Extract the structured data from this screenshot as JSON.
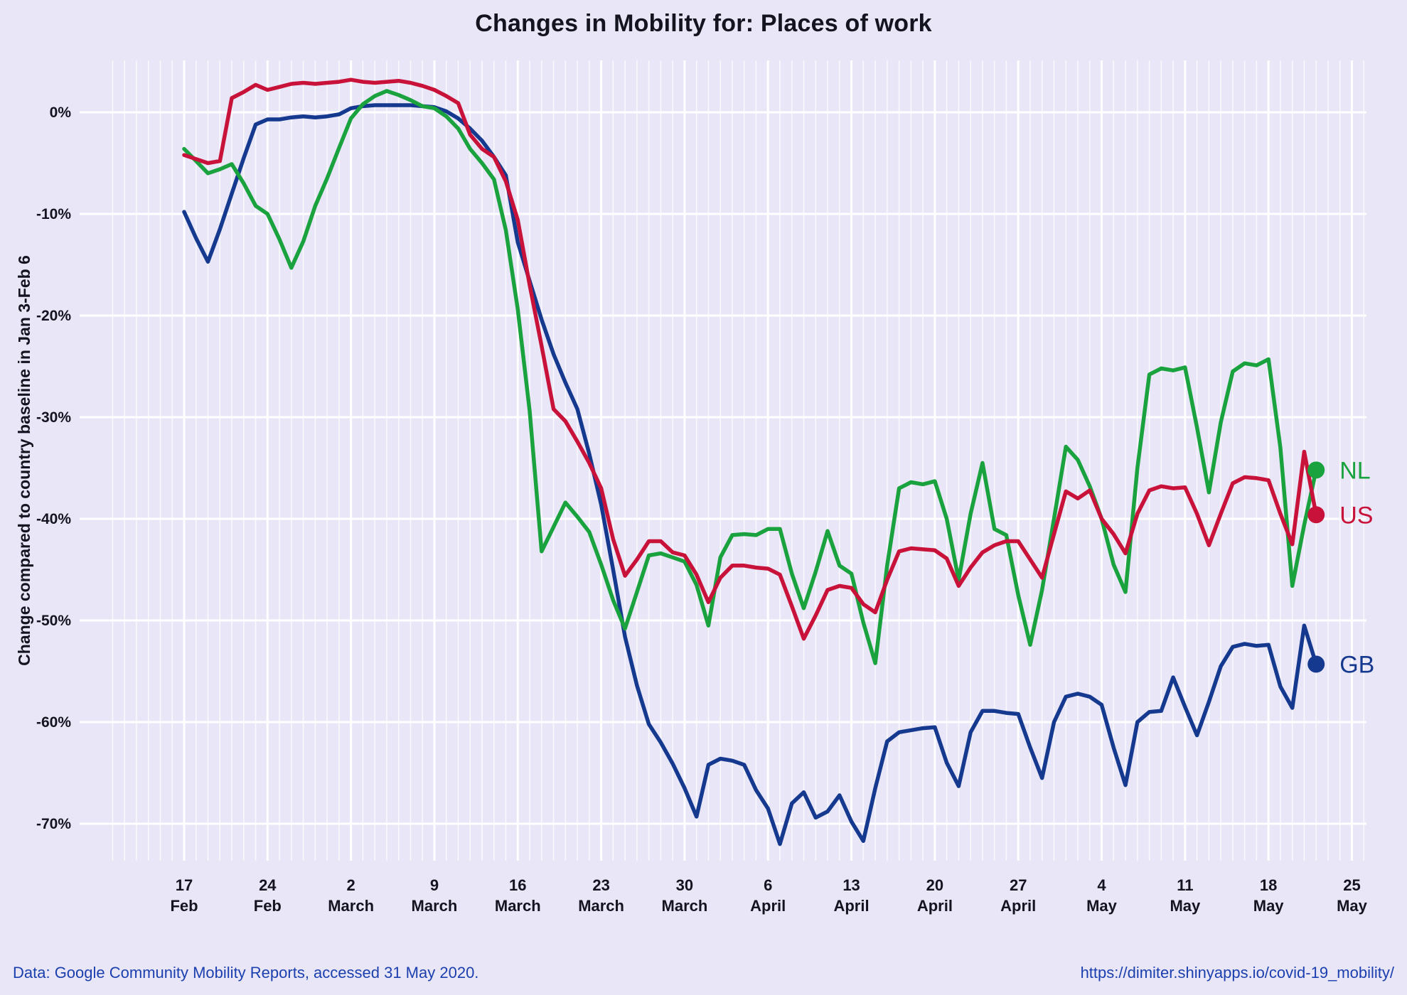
{
  "title": "Changes in Mobility for: Places of work",
  "footer": {
    "source": "Data: Google Community Mobility Reports, accessed 31 May 2020.",
    "url": "https://dimiter.shinyapps.io/covid-19_mobility/"
  },
  "colors": {
    "background": "#E9E7F7",
    "gridline": "#FFFFFF",
    "text": "#141420",
    "footer_text": "#1B3FAE",
    "nl": "#19A23E",
    "us": "#C8123A",
    "gb": "#15398F"
  },
  "chart_data": {
    "type": "line",
    "title": "Changes in Mobility for: Places of work",
    "ylabel": "Change compared to country baseline in Jan 3-Feb 6",
    "xlabel": "",
    "ylim": [
      -73.5,
      5.1
    ],
    "grid": "white major horizontal every 10%, white vertical weekly major + daily minor",
    "legend_position": "right end of lines, colored dot + label",
    "y_tick_labels": [
      "0%",
      "-10%",
      "-20%",
      "-30%",
      "-40%",
      "-50%",
      "-60%",
      "-70%"
    ],
    "y_tick_values": [
      0,
      -10,
      -20,
      -30,
      -40,
      -50,
      -60,
      -70
    ],
    "x_tick_labels": [
      {
        "day": "17",
        "month": "Feb"
      },
      {
        "day": "24",
        "month": "Feb"
      },
      {
        "day": "2",
        "month": "March"
      },
      {
        "day": "9",
        "month": "March"
      },
      {
        "day": "16",
        "month": "March"
      },
      {
        "day": "23",
        "month": "March"
      },
      {
        "day": "30",
        "month": "March"
      },
      {
        "day": "6",
        "month": "April"
      },
      {
        "day": "13",
        "month": "April"
      },
      {
        "day": "20",
        "month": "April"
      },
      {
        "day": "27",
        "month": "April"
      },
      {
        "day": "4",
        "month": "May"
      },
      {
        "day": "11",
        "month": "May"
      },
      {
        "day": "18",
        "month": "May"
      },
      {
        "day": "25",
        "month": "May"
      }
    ],
    "x_tick_day_index": [
      0,
      7,
      14,
      21,
      28,
      35,
      42,
      49,
      56,
      63,
      70,
      77,
      84,
      91,
      98
    ],
    "x_start": "17 Feb (day index 0, daily data)",
    "x_end_day_index": 95,
    "series": [
      {
        "name": "GB",
        "color": "#15398F",
        "values": [
          -9.8,
          -12.4,
          -14.7,
          -11.5,
          -8.0,
          -4.5,
          -1.2,
          -0.7,
          -0.7,
          -0.5,
          -0.4,
          -0.5,
          -0.4,
          -0.2,
          0.4,
          0.6,
          0.7,
          0.7,
          0.7,
          0.7,
          0.6,
          0.5,
          0.1,
          -0.6,
          -1.6,
          -2.8,
          -4.4,
          -6.2,
          -12.8,
          -16.6,
          -20.4,
          -23.8,
          -26.6,
          -29.2,
          -33.6,
          -38.6,
          -45.0,
          -51.6,
          -56.4,
          -60.2,
          -62.0,
          -64.1,
          -66.5,
          -69.3,
          -64.2,
          -63.6,
          -63.8,
          -64.2,
          -66.7,
          -68.5,
          -72.0,
          -68.0,
          -66.9,
          -69.4,
          -68.8,
          -67.2,
          -69.8,
          -71.7,
          -66.5,
          -61.9,
          -61.0,
          -60.8,
          -60.6,
          -60.5,
          -64.0,
          -66.3,
          -61.0,
          -58.9,
          -58.9,
          -59.1,
          -59.2,
          -62.5,
          -65.5,
          -60.0,
          -57.5,
          -57.2,
          -57.5,
          -58.3,
          -62.5,
          -66.2,
          -60.0,
          -59.0,
          -58.9,
          -55.6,
          -58.5,
          -61.3,
          -58.0,
          -54.5,
          -52.6,
          -52.3,
          -52.5,
          -52.4,
          -56.5,
          -58.6,
          -50.5,
          -54.3
        ]
      },
      {
        "name": "NL",
        "color": "#19A23E",
        "values": [
          -3.6,
          -4.8,
          -6.0,
          -5.6,
          -5.1,
          -7.0,
          -9.2,
          -10.0,
          -12.5,
          -15.3,
          -12.7,
          -9.2,
          -6.5,
          -3.5,
          -0.6,
          0.8,
          1.6,
          2.1,
          1.7,
          1.2,
          0.6,
          0.4,
          -0.4,
          -1.6,
          -3.6,
          -5.0,
          -6.6,
          -11.6,
          -19.4,
          -29.4,
          -43.2,
          -40.8,
          -38.4,
          -39.8,
          -41.3,
          -44.5,
          -48.0,
          -50.8,
          -47.2,
          -43.6,
          -43.4,
          -43.8,
          -44.2,
          -46.5,
          -50.5,
          -43.8,
          -41.6,
          -41.5,
          -41.6,
          -41.0,
          -41.0,
          -45.4,
          -48.8,
          -45.2,
          -41.2,
          -44.6,
          -45.4,
          -50.2,
          -54.2,
          -44.6,
          -37.0,
          -36.4,
          -36.6,
          -36.3,
          -40.0,
          -46.0,
          -39.5,
          -34.5,
          -41.0,
          -41.6,
          -47.5,
          -52.4,
          -47.0,
          -40.0,
          -32.9,
          -34.2,
          -36.8,
          -40.0,
          -44.5,
          -47.2,
          -35.0,
          -25.8,
          -25.2,
          -25.4,
          -25.1,
          -31.0,
          -37.4,
          -30.5,
          -25.5,
          -24.7,
          -24.9,
          -24.3,
          -33.0,
          -46.6,
          -40.6,
          -35.2
        ]
      },
      {
        "name": "US",
        "color": "#C8123A",
        "values": [
          -4.2,
          -4.6,
          -5.0,
          -4.8,
          1.4,
          2.0,
          2.7,
          2.2,
          2.5,
          2.8,
          2.9,
          2.8,
          2.9,
          3.0,
          3.2,
          3.0,
          2.9,
          3.0,
          3.1,
          2.9,
          2.6,
          2.2,
          1.6,
          0.9,
          -2.2,
          -3.6,
          -4.4,
          -6.8,
          -10.6,
          -17.0,
          -23.0,
          -29.2,
          -30.4,
          -32.4,
          -34.5,
          -37.0,
          -42.0,
          -45.6,
          -44.0,
          -42.2,
          -42.2,
          -43.3,
          -43.6,
          -45.5,
          -48.2,
          -45.8,
          -44.6,
          -44.6,
          -44.8,
          -44.9,
          -45.5,
          -48.6,
          -51.8,
          -49.5,
          -47.0,
          -46.6,
          -46.8,
          -48.4,
          -49.2,
          -46.0,
          -43.2,
          -42.9,
          -43.0,
          -43.1,
          -43.9,
          -46.6,
          -44.8,
          -43.3,
          -42.6,
          -42.2,
          -42.2,
          -44.0,
          -45.8,
          -41.5,
          -37.3,
          -38.0,
          -37.2,
          -40.0,
          -41.5,
          -43.4,
          -39.5,
          -37.2,
          -36.8,
          -37.0,
          -36.9,
          -39.5,
          -42.6,
          -39.5,
          -36.5,
          -35.9,
          -36.0,
          -36.2,
          -39.5,
          -42.5,
          -33.4,
          -39.6
        ]
      }
    ],
    "legend": [
      {
        "label": "NL",
        "color": "#19A23E"
      },
      {
        "label": "US",
        "color": "#C8123A"
      },
      {
        "label": "GB",
        "color": "#15398F"
      }
    ]
  }
}
